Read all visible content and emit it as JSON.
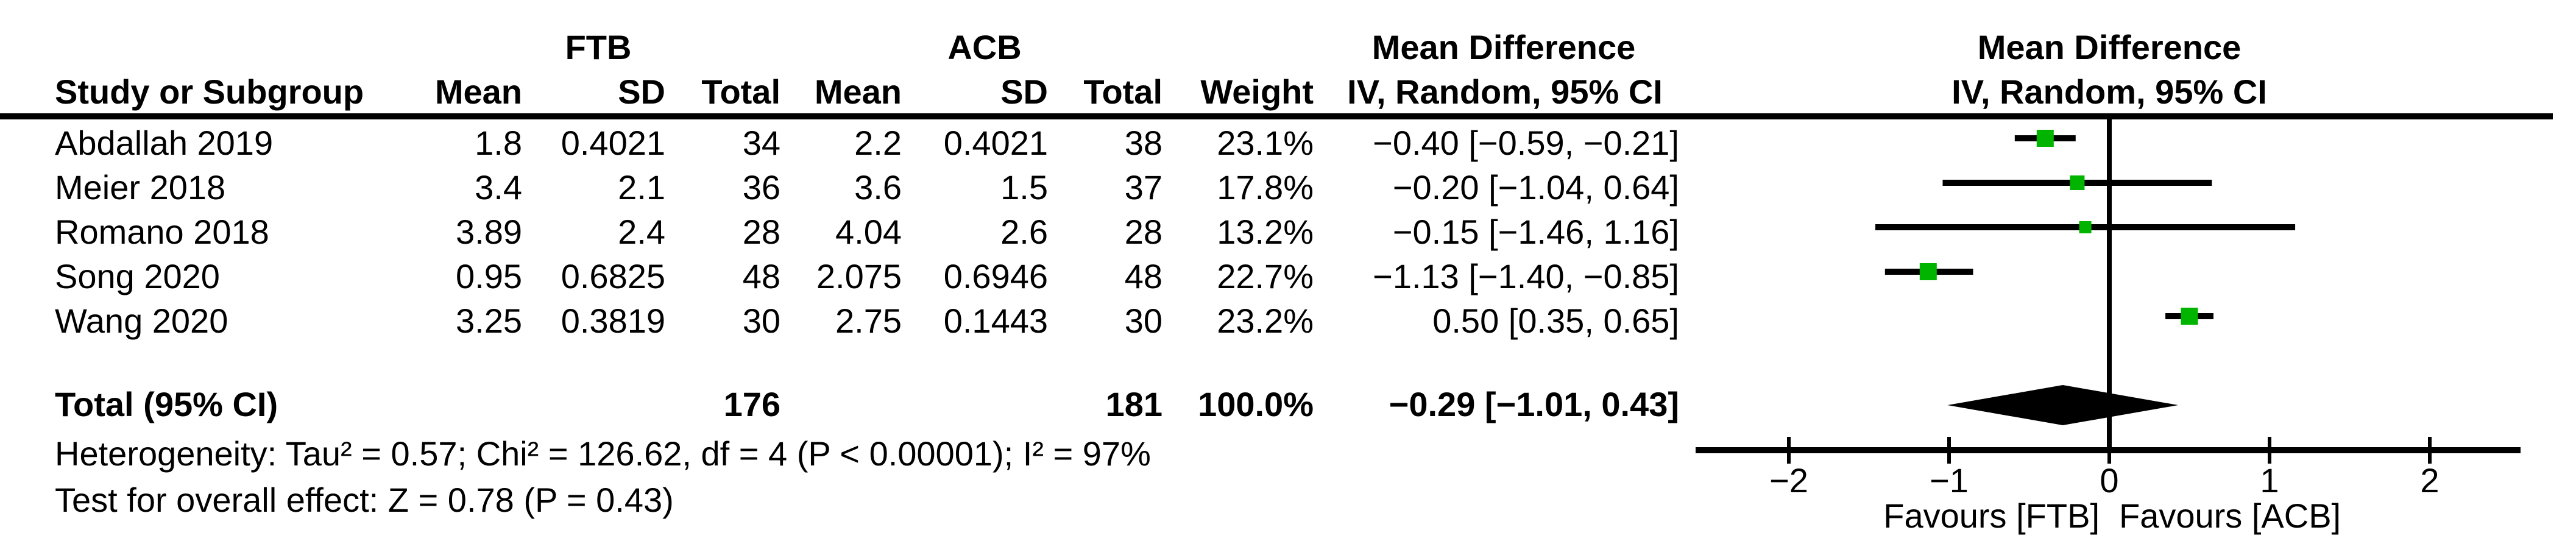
{
  "chart_data": {
    "type": "scatter",
    "variant": "forest-plot-mean-difference",
    "effect_measure": "Mean Difference, IV, Random, 95% CI",
    "headers": {
      "study": "Study or Subgroup",
      "ftb": "FTB",
      "acb": "ACB",
      "mean": "Mean",
      "sd": "SD",
      "total": "Total",
      "weight": "Weight",
      "md": "Mean Difference",
      "iv_ci": "IV, Random, 95% CI"
    },
    "studies": [
      {
        "name": "Abdallah 2019",
        "ftb_mean": "1.8",
        "ftb_sd": "0.4021",
        "ftb_total": "34",
        "acb_mean": "2.2",
        "acb_sd": "0.4021",
        "acb_total": "38",
        "weight": "23.1%",
        "md_text": "−0.40 [−0.59, −0.21]",
        "md": -0.4,
        "ci": [
          -0.59,
          -0.21
        ],
        "marker_size": 28
      },
      {
        "name": "Meier 2018",
        "ftb_mean": "3.4",
        "ftb_sd": "2.1",
        "ftb_total": "36",
        "acb_mean": "3.6",
        "acb_sd": "1.5",
        "acb_total": "37",
        "weight": "17.8%",
        "md_text": "−0.20 [−1.04, 0.64]",
        "md": -0.2,
        "ci": [
          -1.04,
          0.64
        ],
        "marker_size": 24
      },
      {
        "name": "Romano 2018",
        "ftb_mean": "3.89",
        "ftb_sd": "2.4",
        "ftb_total": "28",
        "acb_mean": "4.04",
        "acb_sd": "2.6",
        "acb_total": "28",
        "weight": "13.2%",
        "md_text": "−0.15 [−1.46, 1.16]",
        "md": -0.15,
        "ci": [
          -1.46,
          1.16
        ],
        "marker_size": 20
      },
      {
        "name": "Song 2020",
        "ftb_mean": "0.95",
        "ftb_sd": "0.6825",
        "ftb_total": "48",
        "acb_mean": "2.075",
        "acb_sd": "0.6946",
        "acb_total": "48",
        "weight": "22.7%",
        "md_text": "−1.13 [−1.40, −0.85]",
        "md": -1.13,
        "ci": [
          -1.4,
          -0.85
        ],
        "marker_size": 28
      },
      {
        "name": "Wang 2020",
        "ftb_mean": "3.25",
        "ftb_sd": "0.3819",
        "ftb_total": "30",
        "acb_mean": "2.75",
        "acb_sd": "0.1443",
        "acb_total": "30",
        "weight": "23.2%",
        "md_text": "0.50 [0.35, 0.65]",
        "md": 0.5,
        "ci": [
          0.35,
          0.65
        ],
        "marker_size": 28
      }
    ],
    "total": {
      "label": "Total (95% CI)",
      "ftb_total": "176",
      "acb_total": "181",
      "weight": "100.0%",
      "md_text": "−0.29 [−1.01, 0.43]",
      "md": -0.29,
      "ci": [
        -1.01,
        0.43
      ]
    },
    "heterogeneity": "Heterogeneity: Tau² = 0.57; Chi² = 126.62, df = 4 (P < 0.00001); I² = 97%",
    "overall_effect": "Test for overall effect: Z = 0.78 (P = 0.43)",
    "x_ticks": [
      -2,
      -1,
      0,
      1,
      2
    ],
    "xlim": [
      -2.58,
      2.56
    ],
    "x_axis_labels": {
      "left": "Favours [FTB]",
      "right": "Favours [ACB]"
    },
    "marker_color": "#00b400",
    "line_color": "#000000"
  }
}
